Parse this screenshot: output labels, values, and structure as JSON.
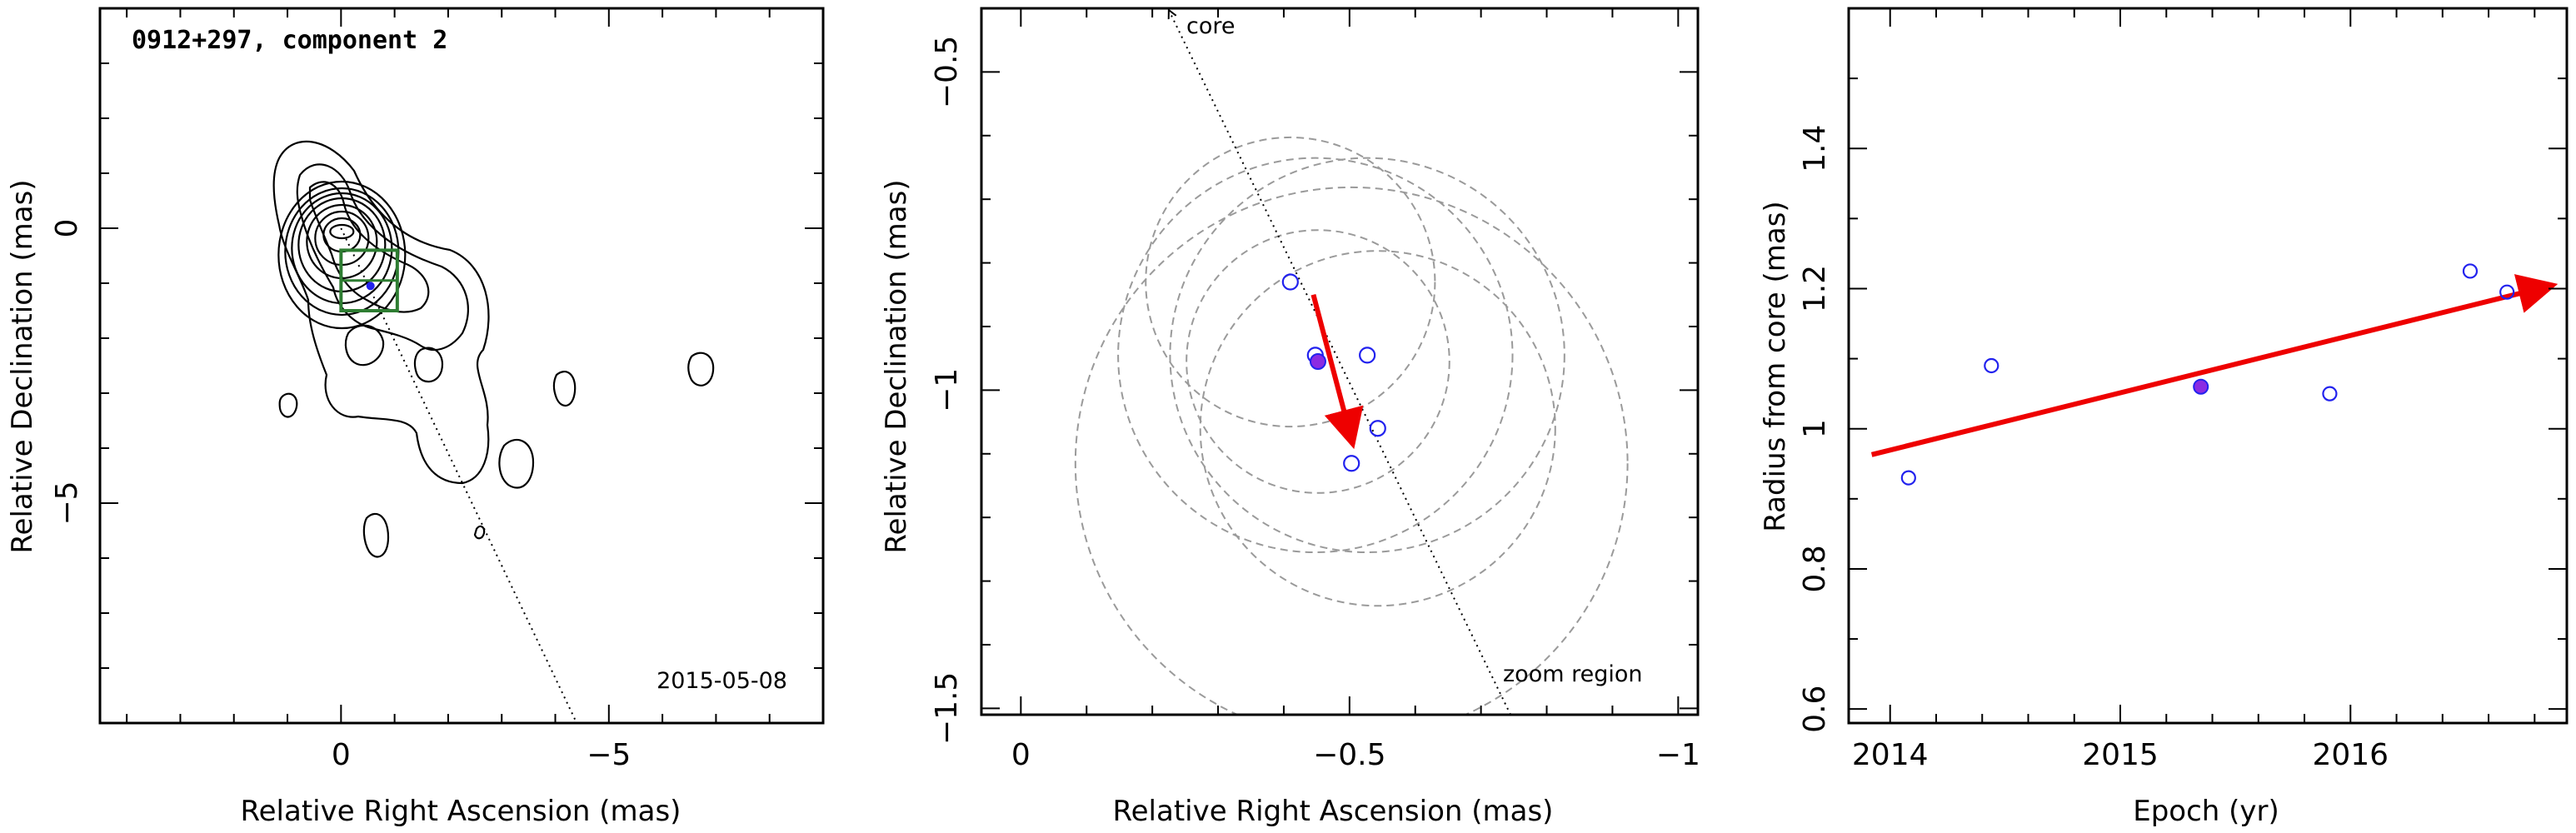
{
  "colors": {
    "contour": "#000000",
    "circles": "#9a9a9a",
    "points": "#2222ee",
    "arrow": "#ee0000",
    "box": "#2e7d32"
  },
  "chart_data": [
    {
      "type": "contour",
      "title": "0912+297, component 2",
      "date": "2015-05-08",
      "xlabel": "Relative Right Ascension (mas)",
      "ylabel": "Relative Declination (mas)",
      "xlim": [
        4.5,
        -9.0
      ],
      "ylim": [
        -9.0,
        4.0
      ],
      "xticks": [
        0,
        -5
      ],
      "yticks": [
        0,
        -5
      ],
      "core_direction_line": [
        [
          0.0,
          0.0
        ],
        [
          -4.4,
          -9.0
        ]
      ],
      "zoom_box": {
        "x": [
          0.0,
          -1.05
        ],
        "y": [
          -0.4,
          -1.5
        ]
      },
      "component_position": [
        -0.55,
        -1.05
      ]
    },
    {
      "type": "scatter",
      "xlabel": "Relative Right Ascension (mas)",
      "ylabel": "Relative Declination (mas)",
      "xlim": [
        0.06,
        -1.03
      ],
      "ylim": [
        -1.51,
        -0.4
      ],
      "xticks": [
        0,
        -0.5,
        -1
      ],
      "xtick_labels": [
        "0",
        "−0.5",
        "−1"
      ],
      "yticks": [
        -0.5,
        -1,
        -1.5
      ],
      "ytick_labels": [
        "−0.5",
        "−1",
        "−1.5"
      ],
      "annotations": {
        "core": "core",
        "zoom": "zoom region"
      },
      "core_direction_line": [
        [
          -0.225,
          -0.4
        ],
        [
          -0.745,
          -1.51
        ]
      ],
      "epochs_open": [
        {
          "x": -0.41,
          "y": -0.83,
          "r": 0.22
        },
        {
          "x": -0.448,
          "y": -0.945,
          "r": 0.3
        },
        {
          "x": -0.527,
          "y": -0.945,
          "r": 0.3
        },
        {
          "x": -0.543,
          "y": -1.06,
          "r": 0.27
        },
        {
          "x": -0.503,
          "y": -1.115,
          "r": 0.42
        }
      ],
      "epoch_filled": {
        "x": -0.452,
        "y": -0.955,
        "r": 0.2
      },
      "motion_arrow": [
        [
          -0.445,
          -0.85
        ],
        [
          -0.505,
          -1.085
        ]
      ]
    },
    {
      "type": "scatter",
      "xlabel": "Epoch (yr)",
      "ylabel": "Radius from core (mas)",
      "xlim": [
        2013.82,
        2016.94
      ],
      "ylim": [
        0.58,
        1.6
      ],
      "xticks": [
        2014,
        2015,
        2016
      ],
      "xtick_labels": [
        "2014",
        "2015",
        "2016"
      ],
      "yticks": [
        0.6,
        0.8,
        1.0,
        1.2,
        1.4
      ],
      "ytick_labels": [
        "0.6",
        "0.8",
        "1",
        "1.2",
        "1.4"
      ],
      "open_points": [
        {
          "x": 2014.08,
          "y": 0.93
        },
        {
          "x": 2014.44,
          "y": 1.09
        },
        {
          "x": 2015.91,
          "y": 1.05
        },
        {
          "x": 2016.52,
          "y": 1.225
        },
        {
          "x": 2016.68,
          "y": 1.195
        }
      ],
      "filled_point": {
        "x": 2015.35,
        "y": 1.06
      },
      "trend_arrow": [
        [
          2013.92,
          0.963
        ],
        [
          2016.88,
          1.205
        ]
      ]
    }
  ]
}
